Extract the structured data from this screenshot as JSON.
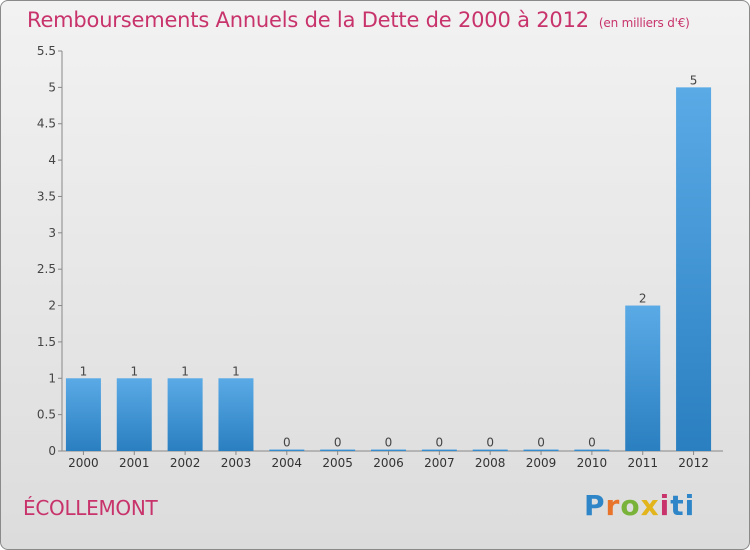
{
  "title": "Remboursements Annuels de la Dette de 2000 à 2012",
  "subtitle": "(en milliers d'€)",
  "commune": "ÉCOLLEMONT",
  "logo": {
    "text": "Proxiti",
    "letters": [
      "P",
      "r",
      "o",
      "x",
      "i",
      "t",
      "i"
    ],
    "colors": [
      "#2e86c8",
      "#e8732a",
      "#7ab33a",
      "#e2b51c",
      "#c8336b",
      "#2e86c8"
    ]
  },
  "colors": {
    "bar_top": "#5aaae6",
    "bar_bottom": "#2a7fc0",
    "title": "#c8336b"
  },
  "chart_data": {
    "type": "bar",
    "title": "Remboursements Annuels de la Dette de 2000 à 2012",
    "categories": [
      "2000",
      "2001",
      "2002",
      "2003",
      "2004",
      "2005",
      "2006",
      "2007",
      "2008",
      "2009",
      "2010",
      "2011",
      "2012"
    ],
    "values": [
      1,
      1,
      1,
      1,
      0,
      0,
      0,
      0,
      0,
      0,
      0,
      2,
      5
    ],
    "data_labels": [
      "1",
      "1",
      "1",
      "1",
      "0",
      "0",
      "0",
      "0",
      "0",
      "0",
      "0",
      "2",
      "5"
    ],
    "ylim": [
      0,
      5.5
    ],
    "yticks": [
      0,
      0.5,
      1,
      1.5,
      2,
      2.5,
      3,
      3.5,
      4,
      4.5,
      5,
      5.5
    ],
    "ytick_labels": [
      "0",
      "0.5",
      "1",
      "1.5",
      "2",
      "2.5",
      "3",
      "3.5",
      "4",
      "4.5",
      "5",
      "5.5"
    ],
    "grid": false,
    "legend": "none"
  }
}
